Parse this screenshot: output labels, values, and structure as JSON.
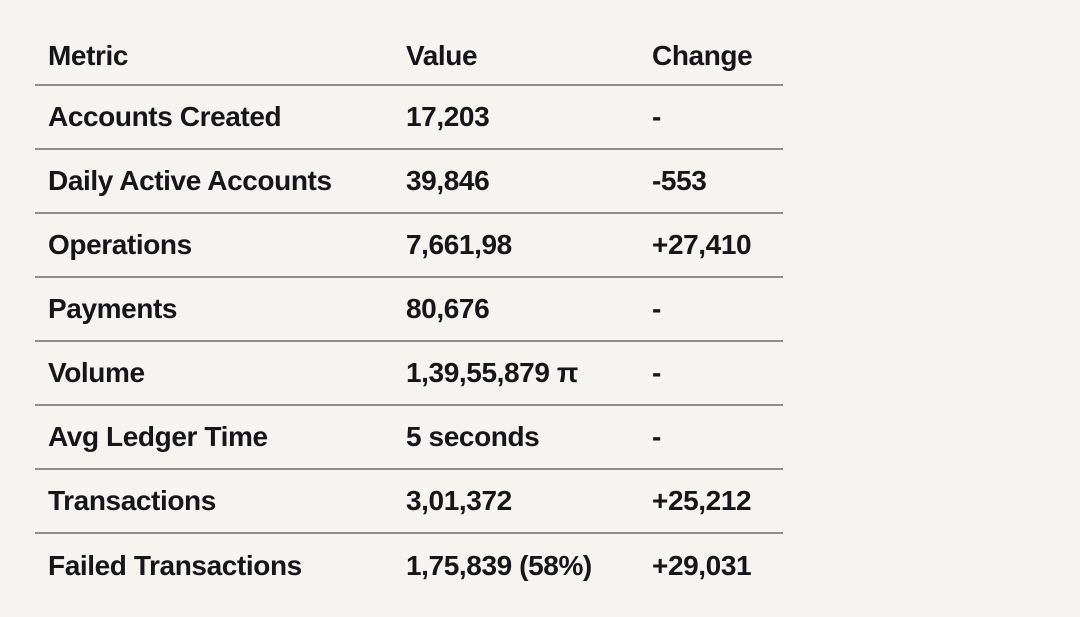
{
  "page": {
    "background_color": "#f5f4f1",
    "text_color": "#15151a",
    "divider_color": "#8d8d8d"
  },
  "chart_data": {
    "type": "table",
    "columns": [
      "Metric",
      "Value",
      "Change"
    ],
    "rows": [
      [
        "Accounts Created",
        "17,203",
        "-"
      ],
      [
        "Daily Active Accounts",
        "39,846",
        "-553"
      ],
      [
        "Operations",
        "7,661,98",
        "+27,410"
      ],
      [
        "Payments",
        "80,676",
        "-"
      ],
      [
        "Volume",
        "1,39,55,879 π",
        "-"
      ],
      [
        "Avg Ledger Time",
        "5 seconds",
        "-"
      ],
      [
        "Transactions",
        "3,01,372",
        "+25,212"
      ],
      [
        "Failed Transactions",
        "1,75,839 (58%)",
        "+29,031"
      ]
    ]
  }
}
